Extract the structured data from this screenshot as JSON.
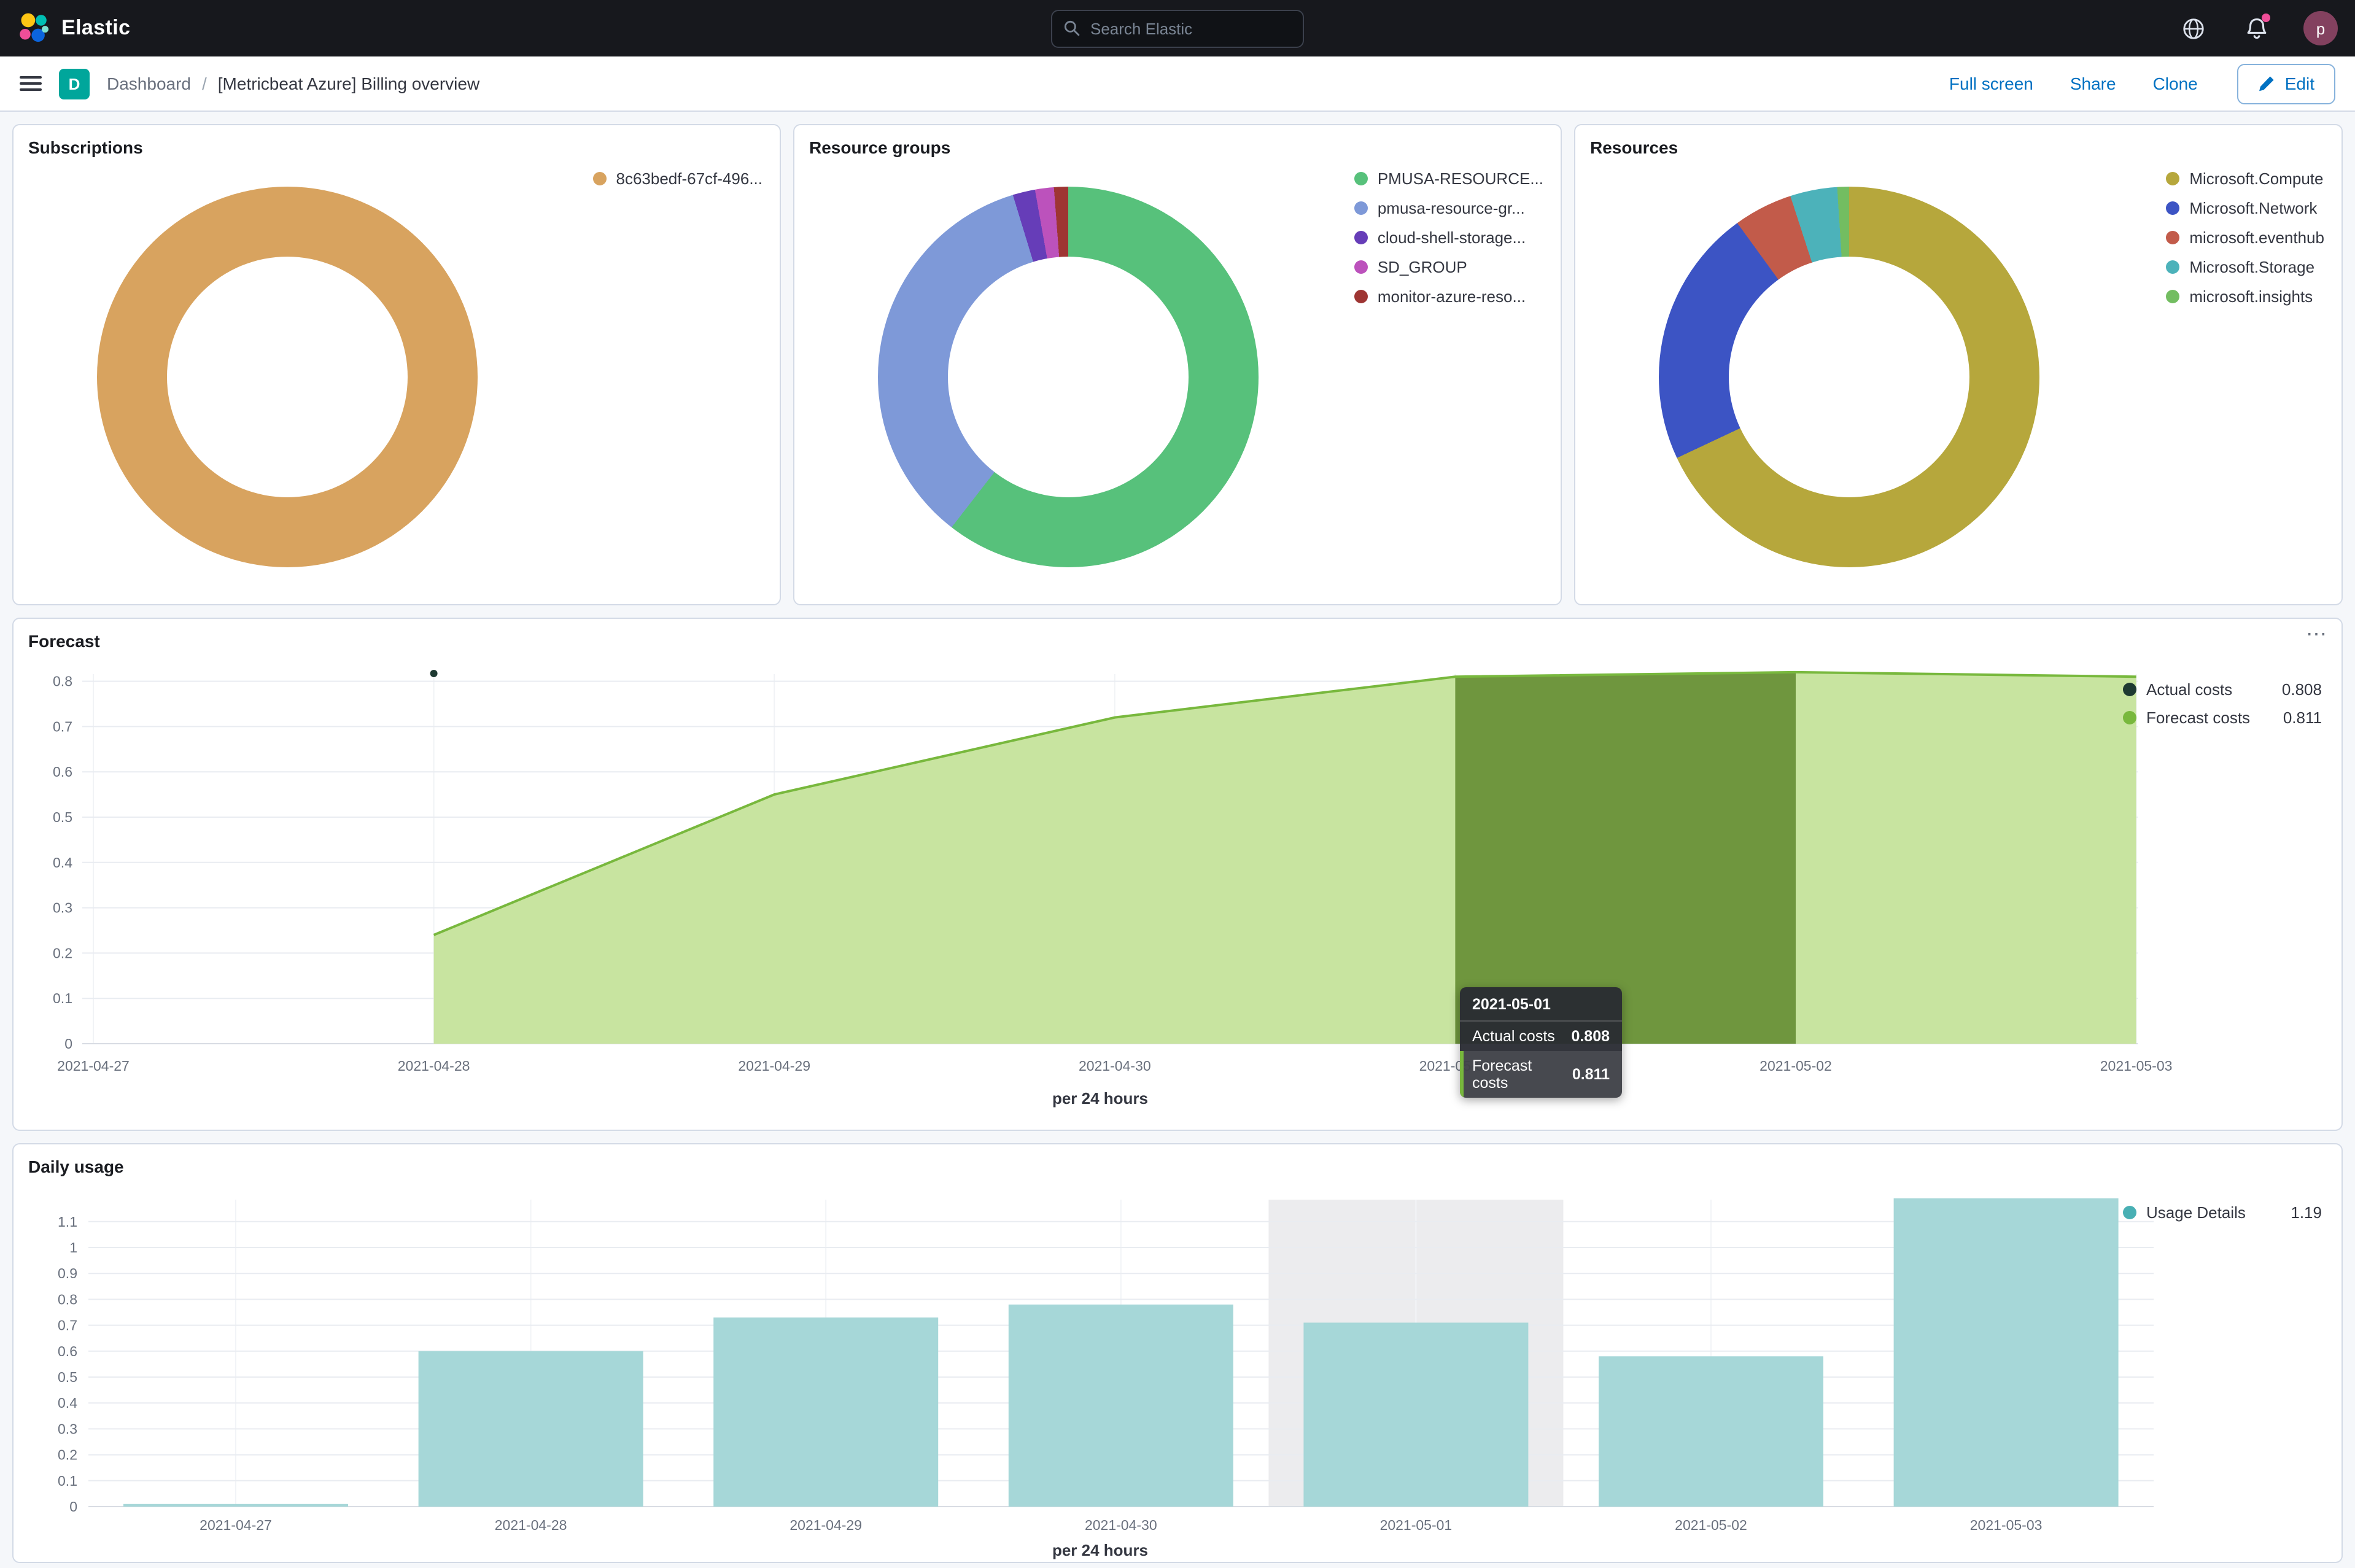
{
  "header": {
    "brand": "Elastic",
    "search": {
      "placeholder": "Search Elastic"
    },
    "avatar_initial": "p"
  },
  "toolbar": {
    "dashboard_badge": "D",
    "breadcrumb": {
      "root": "Dashboard",
      "separator": "/",
      "current": "[Metricbeat Azure] Billing overview"
    },
    "actions": {
      "full_screen": "Full screen",
      "share": "Share",
      "clone": "Clone",
      "edit": "Edit"
    }
  },
  "chart_data": [
    {
      "id": "subscriptions",
      "type": "pie",
      "title": "Subscriptions",
      "slices": [
        {
          "label": "8c63bedf-67cf-496...",
          "value": 100,
          "color": "#d8a35f"
        }
      ]
    },
    {
      "id": "resource_groups",
      "type": "pie",
      "title": "Resource groups",
      "slices": [
        {
          "label": "PMUSA-RESOURCE...",
          "value": 60.5,
          "color": "#57c17b"
        },
        {
          "label": "pmusa-resource-gr...",
          "value": 34.8,
          "color": "#7e99d8"
        },
        {
          "label": "cloud-shell-storage...",
          "value": 1.9,
          "color": "#663db8"
        },
        {
          "label": "SD_GROUP",
          "value": 1.6,
          "color": "#bc52bc"
        },
        {
          "label": "monitor-azure-reso...",
          "value": 1.2,
          "color": "#9e3533"
        }
      ]
    },
    {
      "id": "resources",
      "type": "pie",
      "title": "Resources",
      "slices": [
        {
          "label": "Microsoft.Compute",
          "value": 68,
          "color": "#b6a73c"
        },
        {
          "label": "Microsoft.Network",
          "value": 22,
          "color": "#3c54c4"
        },
        {
          "label": "microsoft.eventhub",
          "value": 5,
          "color": "#c25b4a"
        },
        {
          "label": "Microsoft.Storage",
          "value": 4,
          "color": "#4cb2ba"
        },
        {
          "label": "microsoft.insights",
          "value": 1,
          "color": "#73bd61"
        }
      ]
    },
    {
      "id": "forecast",
      "type": "area",
      "title": "Forecast",
      "x": [
        "2021-04-27",
        "2021-04-28",
        "2021-04-29",
        "2021-04-30",
        "2021-05-01",
        "2021-05-02",
        "2021-05-03"
      ],
      "series": [
        {
          "name": "Actual costs",
          "legend_value": "0.808",
          "color": "#1e3a32",
          "marker": {
            "x": "2021-04-28",
            "y": 0.817
          }
        },
        {
          "name": "Forecast costs",
          "legend_value": "0.811",
          "color": "#78b83d",
          "fill": "#c8e4a0",
          "values": [
            null,
            0.24,
            0.55,
            0.72,
            0.81,
            0.82,
            0.81
          ]
        }
      ],
      "highlight_band": {
        "from": "2021-05-01",
        "to": "2021-05-02",
        "color": "#6f963e"
      },
      "yticks": [
        0,
        0.1,
        0.2,
        0.3,
        0.4,
        0.5,
        0.6,
        0.7,
        0.8
      ],
      "ylim": [
        0,
        0.83
      ],
      "xlabel": "per 24 hours",
      "tooltip": {
        "header": "2021-05-01",
        "rows": [
          {
            "label": "Actual costs",
            "value": "0.808",
            "highlight": false
          },
          {
            "label": "Forecast costs",
            "value": "0.811",
            "highlight": true
          }
        ]
      }
    },
    {
      "id": "daily_usage",
      "type": "bar",
      "title": "Daily usage",
      "categories": [
        "2021-04-27",
        "2021-04-28",
        "2021-04-29",
        "2021-04-30",
        "2021-05-01",
        "2021-05-02",
        "2021-05-03"
      ],
      "values": [
        0.01,
        0.6,
        0.73,
        0.78,
        0.71,
        0.58,
        1.19
      ],
      "bar_color": "#a6d7d8",
      "legend": [
        {
          "label": "Usage Details",
          "value": "1.19",
          "color": "#49b0b4"
        }
      ],
      "yticks": [
        0,
        0.1,
        0.2,
        0.3,
        0.4,
        0.5,
        0.6,
        0.7,
        0.8,
        0.9,
        1,
        1.1
      ],
      "ylim": [
        0,
        1.19
      ],
      "xlabel": "per 24 hours",
      "hover_band_index": 4,
      "hover_band_color": "#ececee"
    }
  ]
}
